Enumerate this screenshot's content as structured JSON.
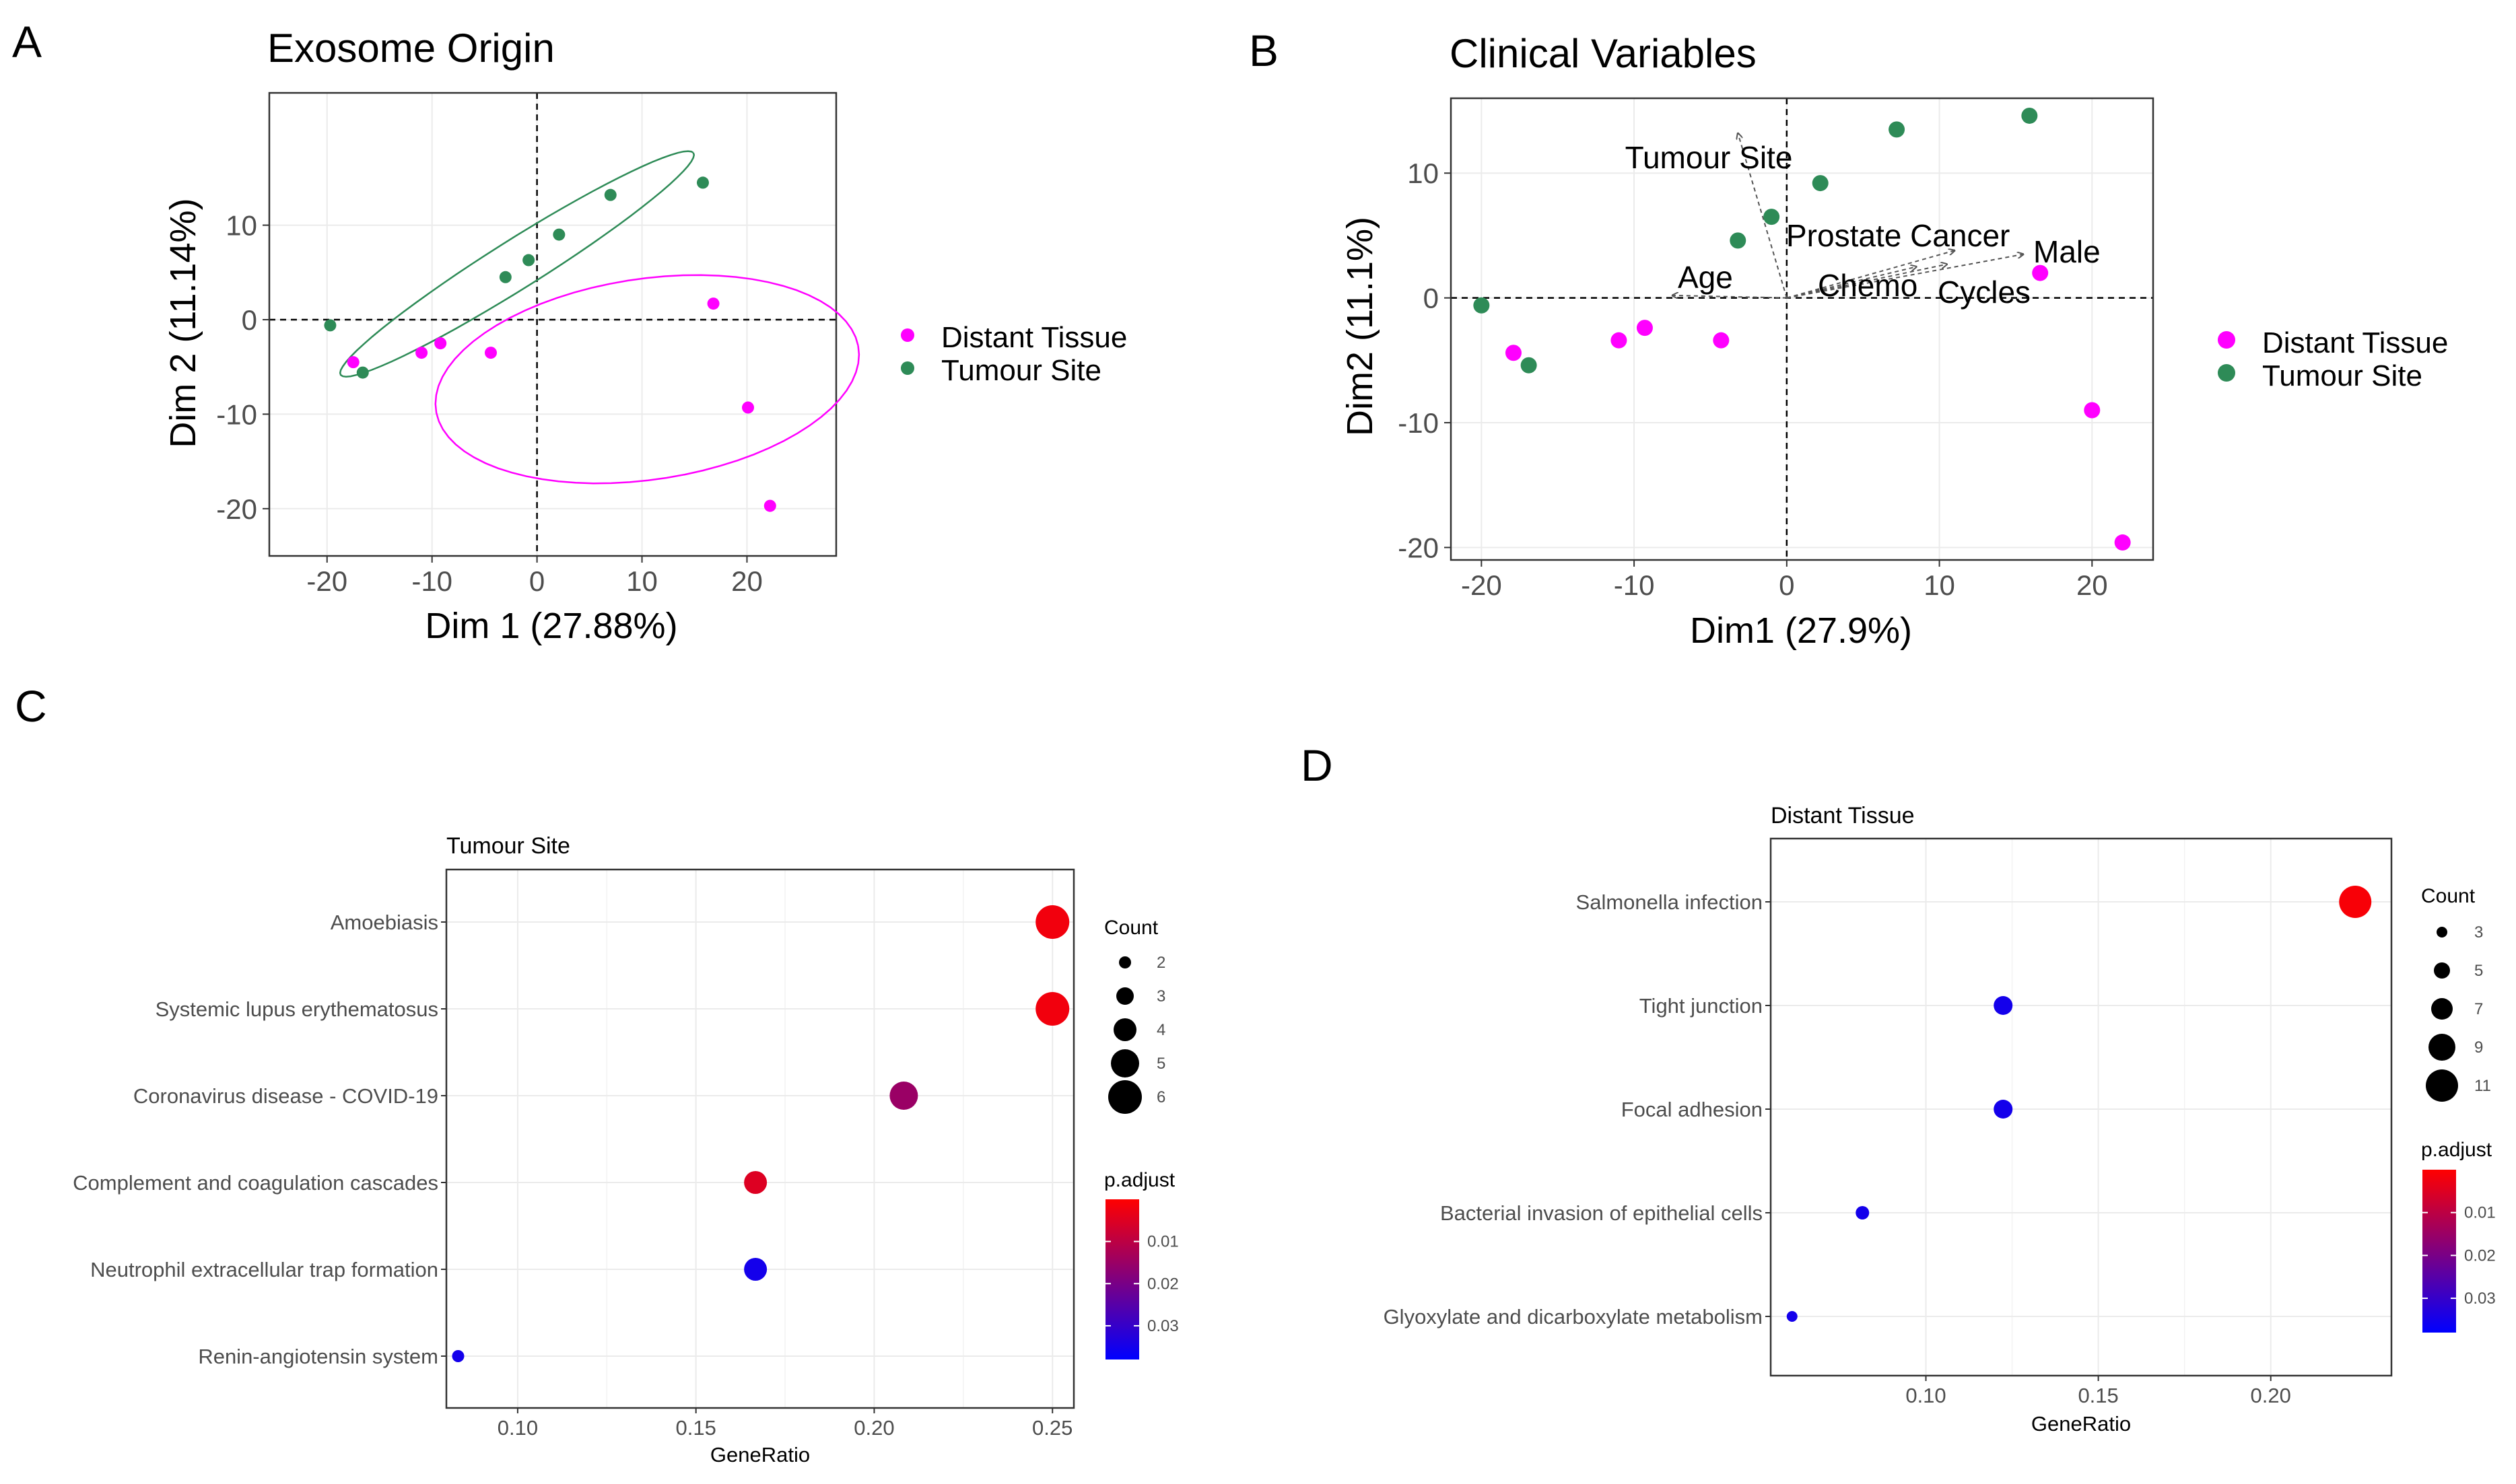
{
  "panel_labels": {
    "a": "A",
    "b": "B",
    "c": "C",
    "d": "D"
  },
  "colors": {
    "distant": "#ff00ff",
    "tumour": "#2e8b57",
    "high_p": "#0000ff",
    "low_p": "#ff0000",
    "grid": "#ebebeb",
    "frame": "#333333",
    "arrow": "#555555"
  },
  "chart_data": [
    {
      "id": "A",
      "type": "scatter",
      "title": "Exosome Origin",
      "xlabel": "Dim 1 (27.88%)",
      "ylabel": "Dim 2 (11.14%)",
      "xlim": [
        -25.5,
        28.5
      ],
      "ylim": [
        -25,
        24
      ],
      "xticks": [
        -20,
        -10,
        0,
        10,
        20
      ],
      "yticks": [
        -20,
        -10,
        0,
        10
      ],
      "legend": [
        "Distant Tissue",
        "Tumour Site"
      ],
      "series": [
        {
          "name": "Distant Tissue",
          "points": [
            [
              -17.5,
              -4.5
            ],
            [
              -11,
              -3.5
            ],
            [
              -9.2,
              -2.5
            ],
            [
              -4.4,
              -3.5
            ],
            [
              16.8,
              1.7
            ],
            [
              20.1,
              -9.3
            ],
            [
              22.2,
              -19.7
            ]
          ]
        },
        {
          "name": "Tumour Site",
          "points": [
            [
              -19.7,
              -0.6
            ],
            [
              -16.6,
              -5.6
            ],
            [
              -3,
              4.5
            ],
            [
              -0.8,
              6.3
            ],
            [
              2.1,
              9
            ],
            [
              7,
              13.2
            ],
            [
              15.8,
              14.5
            ]
          ]
        }
      ],
      "ellipses": [
        {
          "group": "Distant Tissue",
          "center": [
            10.5,
            -6.3
          ],
          "rx": 20.4,
          "ry": 10.6,
          "angle_deg": 10
        },
        {
          "group": "Tumour Site",
          "center": [
            -1.9,
            5.9
          ],
          "rx": 20.5,
          "ry": 2.5,
          "angle_deg": 35
        }
      ]
    },
    {
      "id": "B",
      "type": "scatter",
      "title": "Clinical Variables",
      "xlabel": "Dim1 (27.9%)",
      "ylabel": "Dim2 (11.1%)",
      "xlim": [
        -22,
        24
      ],
      "ylim": [
        -21,
        16
      ],
      "xticks": [
        -20,
        -10,
        0,
        10,
        20
      ],
      "yticks": [
        -20,
        -10,
        0,
        10
      ],
      "legend": [
        "Distant Tissue",
        "Tumour Site"
      ],
      "series": [
        {
          "name": "Distant Tissue",
          "points": [
            [
              -17.9,
              -4.4
            ],
            [
              -11,
              -3.4
            ],
            [
              -9.3,
              -2.4
            ],
            [
              -4.3,
              -3.4
            ],
            [
              16.6,
              2
            ],
            [
              20,
              -9
            ],
            [
              22,
              -19.6
            ]
          ]
        },
        {
          "name": "Tumour Site",
          "points": [
            [
              -20,
              -0.6
            ],
            [
              -16.9,
              -5.4
            ],
            [
              -3.2,
              4.6
            ],
            [
              -1,
              6.5
            ],
            [
              2.2,
              9.2
            ],
            [
              7.2,
              13.5
            ],
            [
              15.9,
              14.6
            ]
          ]
        }
      ],
      "arrows": [
        {
          "label": "Tumour Site",
          "end": [
            -3.2,
            13.2
          ]
        },
        {
          "label": "Prostate Cancer",
          "end": [
            11,
            3.8
          ]
        },
        {
          "label": "Male",
          "end": [
            15.5,
            3.5
          ]
        },
        {
          "label": "Age",
          "end": [
            -7.5,
            0.2
          ]
        },
        {
          "label": "Chemo",
          "end": [
            8.5,
            2.5
          ]
        },
        {
          "label": "Cycles",
          "end": [
            10.5,
            2.7
          ]
        }
      ]
    },
    {
      "id": "C",
      "type": "scatter",
      "title": "Tumour Site",
      "xlabel": "GeneRatio",
      "xlim": [
        0.08,
        0.256
      ],
      "xticks": [
        0.1,
        0.15,
        0.2,
        0.25
      ],
      "xticklabels": [
        "0.10",
        "0.15",
        "0.20",
        "0.25"
      ],
      "categories": [
        "Amoebiasis",
        "Systemic lupus erythematosus",
        "Coronavirus disease - COVID-19",
        "Complement and coagulation cascades",
        "Neutrophil extracellular trap formation",
        "Renin-angiotensin system"
      ],
      "gene_ratio": [
        0.25,
        0.25,
        0.2083,
        0.1667,
        0.1667,
        0.0833
      ],
      "count": [
        6,
        6,
        5,
        4,
        4,
        2
      ],
      "p_adjust": [
        0.002,
        0.002,
        0.015,
        0.005,
        0.035,
        0.035
      ],
      "size_legend": {
        "title": "Count",
        "levels": [
          2,
          3,
          4,
          5,
          6
        ]
      },
      "color_legend": {
        "title": "p.adjust",
        "range": [
          0.0,
          0.038
        ],
        "ticks": [
          0.01,
          0.02,
          0.03
        ]
      }
    },
    {
      "id": "D",
      "type": "scatter",
      "title": "Distant Tissue",
      "xlabel": "GeneRatio",
      "xlim": [
        0.055,
        0.235
      ],
      "xticks": [
        0.1,
        0.15,
        0.2
      ],
      "xticklabels": [
        "0.10",
        "0.15",
        "0.20"
      ],
      "categories": [
        "Salmonella infection",
        "Tight junction",
        "Focal adhesion",
        "Bacterial invasion of epithelial cells",
        "Glyoxylate and dicarboxylate metabolism"
      ],
      "gene_ratio": [
        0.2245,
        0.1224,
        0.1224,
        0.0816,
        0.0612
      ],
      "count": [
        11,
        6,
        6,
        4,
        3
      ],
      "p_adjust": [
        0.001,
        0.035,
        0.035,
        0.035,
        0.035
      ],
      "size_legend": {
        "title": "Count",
        "levels": [
          3,
          5,
          7,
          9,
          11
        ]
      },
      "color_legend": {
        "title": "p.adjust",
        "range": [
          0.0,
          0.038
        ],
        "ticks": [
          0.01,
          0.02,
          0.03
        ]
      }
    }
  ]
}
